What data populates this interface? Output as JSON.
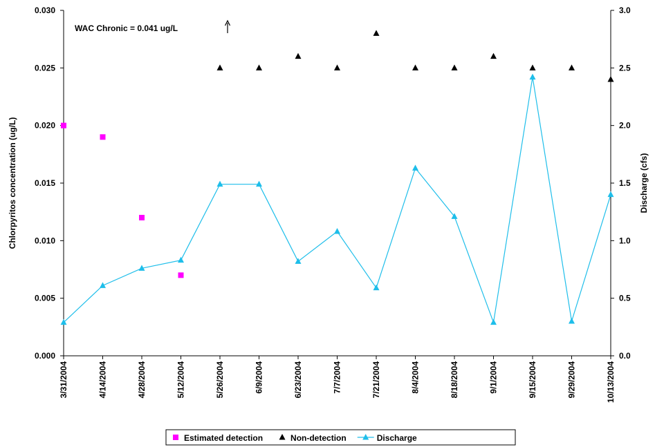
{
  "chart_data": {
    "type": "combo",
    "annotation": "WAC Chronic = 0.041 ug/L",
    "ylabel": "Chlorpyritos concentration (ug/L)",
    "y2label": "Discharge (cfs)",
    "categories": [
      "3/31/2004",
      "4/14/2004",
      "4/28/2004",
      "5/12/2004",
      "5/26/2004",
      "6/9/2004",
      "6/23/2004",
      "7/7/2004",
      "7/21/2004",
      "8/4/2004",
      "8/18/2004",
      "9/1/2004",
      "9/15/2004",
      "9/29/2004",
      "10/13/2004"
    ],
    "ylim": [
      0,
      0.03
    ],
    "yticks": [
      {
        "value": 0,
        "label": "0.000"
      },
      0.005,
      {
        "value": 0.01,
        "label": "0.010"
      },
      0.015,
      {
        "value": 0.02,
        "label": "0.020"
      },
      0.025,
      {
        "value": 0.03,
        "label": "0.030"
      }
    ],
    "y2lim": [
      0,
      3
    ],
    "y2ticks": [
      {
        "value": 0,
        "label": "0.0"
      },
      0.5,
      {
        "value": 1,
        "label": "1.0"
      },
      1.5,
      {
        "value": 2,
        "label": "2.0"
      },
      2.5,
      {
        "value": 3,
        "label": "3.0"
      }
    ],
    "series": [
      {
        "name": "Estimated detection",
        "color": "#ff00ff",
        "marker": "square",
        "values": [
          0.02,
          0.019,
          0.012,
          0.007,
          null,
          null,
          null,
          null,
          null,
          null,
          null,
          null,
          null,
          null,
          null
        ]
      },
      {
        "name": "Non-detection",
        "color": "#000000",
        "marker": "triangle",
        "values": [
          null,
          null,
          null,
          null,
          0.025,
          0.025,
          0.026,
          0.025,
          0.028,
          0.025,
          0.025,
          0.026,
          0.025,
          0.025,
          0.024
        ]
      },
      {
        "name": "Discharge",
        "color": "#1ebeea",
        "marker": "triangle",
        "line": true,
        "axis": "y2",
        "values": [
          0.29,
          0.61,
          0.76,
          0.83,
          1.49,
          1.49,
          0.82,
          1.08,
          0.59,
          1.63,
          1.21,
          0.29,
          2.42,
          0.3,
          1.4
        ]
      }
    ]
  }
}
